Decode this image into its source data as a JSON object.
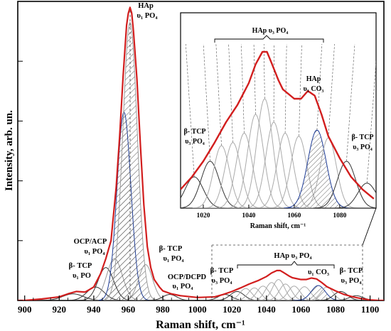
{
  "chart_data": [
    {
      "type": "line",
      "xlabel": "Raman shift, cm⁻¹",
      "ylabel": "Intensity, arb. un.",
      "xlim": [
        896,
        1108
      ],
      "ylim": [
        0,
        1.0
      ],
      "x_ticks": [
        900,
        920,
        940,
        960,
        980,
        1000,
        1020,
        1040,
        1060,
        1080,
        1100
      ],
      "grid": false,
      "series": [
        {
          "role": "measured spectrum",
          "color": "#8c8c8c",
          "x": [
            896,
            900,
            910,
            920,
            925,
            930,
            935,
            940,
            944,
            947,
            950,
            953,
            955,
            957,
            959,
            960,
            961,
            962,
            963,
            965,
            967,
            969,
            971,
            973,
            975,
            978,
            980,
            985,
            990,
            1000,
            1010,
            1015,
            1020,
            1025,
            1030,
            1035,
            1040,
            1043,
            1046,
            1048,
            1050,
            1053,
            1055,
            1060,
            1063,
            1066,
            1069,
            1072,
            1075,
            1080,
            1085,
            1090,
            1095,
            1100,
            1105,
            1108
          ],
          "y": [
            0.0,
            0.0,
            0.005,
            0.012,
            0.022,
            0.03,
            0.028,
            0.045,
            0.09,
            0.14,
            0.2,
            0.38,
            0.55,
            0.75,
            0.92,
            0.96,
            0.98,
            0.96,
            0.9,
            0.74,
            0.52,
            0.32,
            0.18,
            0.11,
            0.07,
            0.045,
            0.032,
            0.022,
            0.016,
            0.01,
            0.012,
            0.02,
            0.03,
            0.042,
            0.055,
            0.066,
            0.08,
            0.092,
            0.1,
            0.1,
            0.093,
            0.082,
            0.076,
            0.07,
            0.07,
            0.075,
            0.072,
            0.06,
            0.046,
            0.032,
            0.02,
            0.012,
            0.006,
            0.002,
            0.0,
            0.0
          ]
        },
        {
          "role": "fitted envelope",
          "color": "#d21e1e",
          "x": [
            896,
            900,
            910,
            920,
            925,
            930,
            935,
            940,
            944,
            947,
            950,
            953,
            955,
            957,
            959,
            960,
            961,
            962,
            963,
            965,
            967,
            969,
            971,
            973,
            975,
            978,
            980,
            985,
            990,
            1000,
            1010,
            1015,
            1020,
            1025,
            1030,
            1035,
            1040,
            1043,
            1046,
            1048,
            1050,
            1053,
            1055,
            1060,
            1063,
            1066,
            1069,
            1072,
            1075,
            1080,
            1085,
            1090,
            1095,
            1100,
            1105,
            1108
          ],
          "y": [
            0.0,
            0.0,
            0.005,
            0.012,
            0.022,
            0.03,
            0.028,
            0.045,
            0.09,
            0.14,
            0.2,
            0.38,
            0.55,
            0.75,
            0.92,
            0.96,
            0.98,
            0.96,
            0.9,
            0.74,
            0.52,
            0.32,
            0.18,
            0.11,
            0.07,
            0.045,
            0.032,
            0.022,
            0.016,
            0.01,
            0.012,
            0.02,
            0.03,
            0.042,
            0.055,
            0.066,
            0.08,
            0.092,
            0.1,
            0.1,
            0.093,
            0.082,
            0.076,
            0.07,
            0.07,
            0.075,
            0.072,
            0.06,
            0.046,
            0.032,
            0.02,
            0.012,
            0.006,
            0.002,
            0.0,
            0.0
          ]
        }
      ],
      "component_peaks": [
        {
          "center": 928,
          "height": 0.022,
          "width": 6,
          "color": "#333333",
          "hatched": false
        },
        {
          "center": 941,
          "height": 0.045,
          "width": 5,
          "color": "#333333",
          "hatched": false
        },
        {
          "center": 947,
          "height": 0.11,
          "width": 4.5,
          "color": "#333333",
          "hatched": false
        },
        {
          "center": 952,
          "height": 0.14,
          "width": 4.5,
          "color": "#999999",
          "hatched": false
        },
        {
          "center": 957.5,
          "height": 0.63,
          "width": 4,
          "color": "#1e3c96",
          "hatched": true
        },
        {
          "center": 961,
          "height": 0.93,
          "width": 4.2,
          "color": "#999999",
          "hatched": true
        },
        {
          "center": 970,
          "height": 0.12,
          "width": 4,
          "color": "#999999",
          "hatched": false
        },
        {
          "center": 984,
          "height": 0.02,
          "width": 4,
          "color": "#333333",
          "hatched": false
        },
        {
          "center": 1016,
          "height": 0.02,
          "width": 4,
          "color": "#333333",
          "hatched": false
        },
        {
          "center": 1023,
          "height": 0.03,
          "width": 4,
          "color": "#333333",
          "hatched": false
        },
        {
          "center": 1028,
          "height": 0.04,
          "width": 3.5,
          "color": "#aaaaaa",
          "hatched": false
        },
        {
          "center": 1033,
          "height": 0.042,
          "width": 3.5,
          "color": "#aaaaaa",
          "hatched": false
        },
        {
          "center": 1038,
          "height": 0.048,
          "width": 3.5,
          "color": "#aaaaaa",
          "hatched": false
        },
        {
          "center": 1043,
          "height": 0.06,
          "width": 3.5,
          "color": "#aaaaaa",
          "hatched": false
        },
        {
          "center": 1047,
          "height": 0.07,
          "width": 3.5,
          "color": "#aaaaaa",
          "hatched": false
        },
        {
          "center": 1051,
          "height": 0.055,
          "width": 3.5,
          "color": "#aaaaaa",
          "hatched": false
        },
        {
          "center": 1056,
          "height": 0.048,
          "width": 3.5,
          "color": "#aaaaaa",
          "hatched": false
        },
        {
          "center": 1062,
          "height": 0.046,
          "width": 3.5,
          "color": "#aaaaaa",
          "hatched": false
        },
        {
          "center": 1070,
          "height": 0.05,
          "width": 4,
          "color": "#1e3c96",
          "hatched": true
        },
        {
          "center": 1075,
          "height": 0.045,
          "width": 3.5,
          "color": "#aaaaaa",
          "hatched": false
        },
        {
          "center": 1083,
          "height": 0.03,
          "width": 4,
          "color": "#333333",
          "hatched": false
        },
        {
          "center": 1092,
          "height": 0.016,
          "width": 4,
          "color": "#333333",
          "hatched": false
        }
      ],
      "annotations": [
        {
          "line1": "HAp",
          "line2": "υ₁ PO₄"
        },
        {
          "line1": "OCP/ACP",
          "line2": "υ₁ PO₄"
        },
        {
          "line1": "β- TCP",
          "line2": "υ₁ PO"
        },
        {
          "line1": "β- TCP",
          "line2": "υ₁ PO₄"
        },
        {
          "line1": "OCP/DCPD",
          "line2": "υ₁ PO₄"
        },
        {
          "line1": "β- TCP",
          "line2": "υ₃ PO₄"
        },
        {
          "line1": "HAp  υ₃ PO₄",
          "line2": ""
        },
        {
          "line1": "υ₁ CO₃",
          "line2": ""
        },
        {
          "line1": "β- TCP",
          "line2": "υ₃ PO₄"
        }
      ]
    },
    {
      "type": "line",
      "xlabel": "Raman shift, cm⁻¹",
      "ylabel": "",
      "xlim": [
        1010,
        1096
      ],
      "ylim": [
        0,
        0.115
      ],
      "x_ticks": [
        1020,
        1040,
        1060,
        1080
      ],
      "grid": false,
      "annotations": [
        {
          "line1": "HAp      υ₃ PO₄",
          "line2": ""
        },
        {
          "line1": "HAp",
          "line2": "υ₁ CO₃"
        },
        {
          "line1": "β- TCP",
          "line2": "υ₃ PO₄"
        },
        {
          "line1": "β- TCP",
          "line2": "υ₃ PO₄"
        }
      ]
    }
  ]
}
